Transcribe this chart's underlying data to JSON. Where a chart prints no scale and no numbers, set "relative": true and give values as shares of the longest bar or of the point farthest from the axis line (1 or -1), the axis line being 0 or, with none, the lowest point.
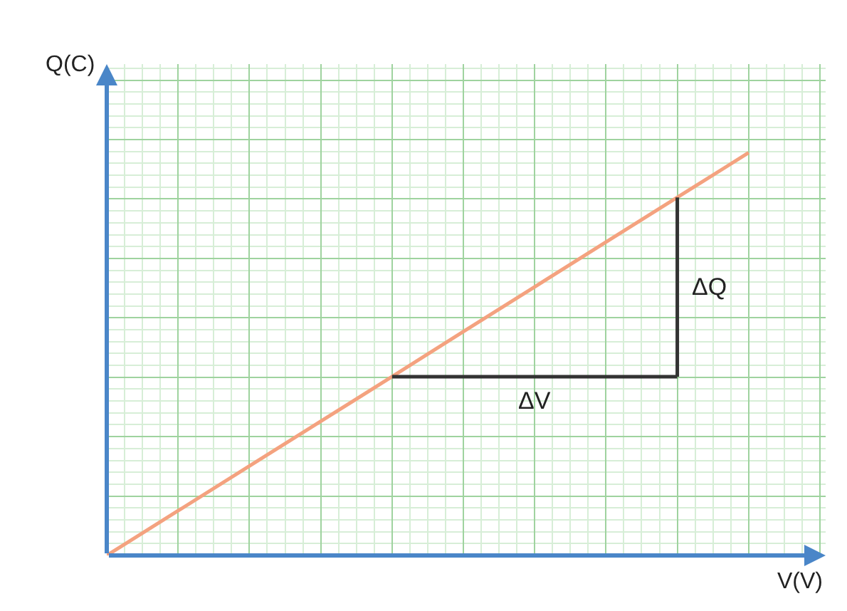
{
  "chart_data": {
    "type": "line",
    "relative": true,
    "xlabel": "V(V)",
    "ylabel": "Q(C)",
    "grid": true,
    "categories": [
      null,
      null,
      null,
      null,
      null,
      null,
      null,
      null,
      null,
      null
    ],
    "series": [
      {
        "color": "#f4a27f",
        "values": [
          0,
          0.111,
          0.222,
          0.333,
          0.444,
          0.556,
          0.667,
          0.778,
          0.889,
          1
        ]
      }
    ],
    "annotations": [
      "ΔV",
      "ΔQ"
    ]
  }
}
